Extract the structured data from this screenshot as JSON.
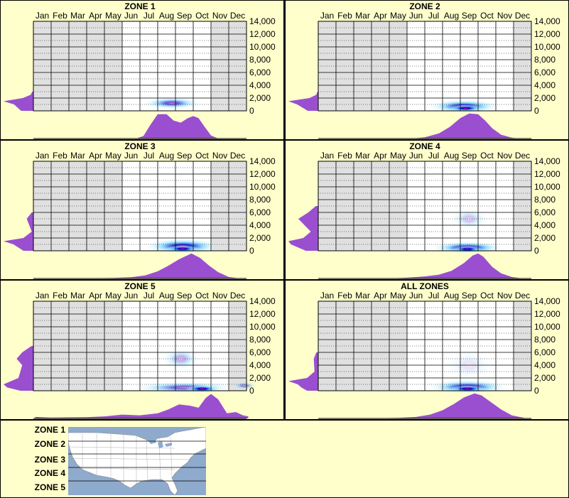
{
  "figure_title": "",
  "colors": {
    "background": "#ffffcc",
    "plot_background": "#ffffff",
    "shaded_month": "#e0e0e0",
    "grid": "#000000",
    "density_curve": "#9a4fd0",
    "heat_low": "#bfefff",
    "heat_mid": "#0000cc",
    "heat_high": "#ff1493",
    "map_water": "#8eaacc",
    "map_land": "#ffffff"
  },
  "months": [
    "Jan",
    "Feb",
    "Mar",
    "Apr",
    "May",
    "Jun",
    "Jul",
    "Aug",
    "Sep",
    "Oct",
    "Nov",
    "Dec"
  ],
  "yticks": [
    "14,000",
    "12,000",
    "10,000",
    "8,000",
    "6,000",
    "4,000",
    "2,000",
    "0"
  ],
  "chart_data": [
    {
      "type": "heatmap",
      "title": "ZONE 1",
      "x_axis": "month",
      "y_axis_ticks": [
        0,
        2000,
        4000,
        6000,
        8000,
        10000,
        12000,
        14000
      ],
      "ylim": [
        0,
        14000
      ],
      "shaded_months": [
        "Jan",
        "Feb",
        "Mar",
        "Apr",
        "May",
        "Nov",
        "Dec"
      ],
      "hotspots": [
        {
          "month_center": 8.3,
          "month_spread": 1.3,
          "elev_center": 1200,
          "elev_spread": 700,
          "intensity": 0.65
        }
      ],
      "elevation_profile": [
        {
          "elev": 0,
          "d": 0.35
        },
        {
          "elev": 500,
          "d": 0.45
        },
        {
          "elev": 1000,
          "d": 0.55
        },
        {
          "elev": 1500,
          "d": 0.85
        },
        {
          "elev": 2000,
          "d": 0.3
        },
        {
          "elev": 2500,
          "d": 0.08
        },
        {
          "elev": 3000,
          "d": 0.03
        }
      ],
      "month_profile": {
        "x": [
          5.8,
          6.2,
          6.6,
          7.0,
          7.5,
          7.9,
          8.3,
          8.7,
          9.0,
          9.3,
          9.6,
          10.0,
          10.4
        ],
        "density": [
          0,
          0.1,
          0.55,
          0.95,
          0.95,
          0.7,
          0.62,
          0.8,
          0.88,
          0.8,
          0.5,
          0.12,
          0
        ]
      }
    },
    {
      "type": "heatmap",
      "title": "ZONE 2",
      "x_axis": "month",
      "y_axis_ticks": [
        0,
        2000,
        4000,
        6000,
        8000,
        10000,
        12000,
        14000
      ],
      "ylim": [
        0,
        14000
      ],
      "shaded_months": [
        "Jan",
        "Feb",
        "Mar",
        "Apr",
        "May",
        "Dec"
      ],
      "hotspots": [
        {
          "month_center": 8.7,
          "month_spread": 1.6,
          "elev_center": 700,
          "elev_spread": 800,
          "intensity": 0.85
        },
        {
          "month_center": 8.8,
          "month_spread": 0.8,
          "elev_center": 400,
          "elev_spread": 400,
          "intensity": 1.0
        }
      ],
      "elevation_profile": [
        {
          "elev": 0,
          "d": 0.3
        },
        {
          "elev": 500,
          "d": 0.45
        },
        {
          "elev": 1000,
          "d": 0.6
        },
        {
          "elev": 1500,
          "d": 0.85
        },
        {
          "elev": 2000,
          "d": 0.25
        },
        {
          "elev": 2500,
          "d": 0.06
        },
        {
          "elev": 3000,
          "d": 0.02
        }
      ],
      "month_profile": {
        "x": [
          5.3,
          6.0,
          6.8,
          7.4,
          8.0,
          8.5,
          9.0,
          9.4,
          9.8,
          10.3,
          10.9,
          11.3
        ],
        "density": [
          0,
          0.05,
          0.2,
          0.45,
          0.8,
          0.98,
          0.95,
          0.7,
          0.4,
          0.15,
          0.03,
          0
        ]
      }
    },
    {
      "type": "heatmap",
      "title": "ZONE 3",
      "x_axis": "month",
      "y_axis_ticks": [
        0,
        2000,
        4000,
        6000,
        8000,
        10000,
        12000,
        14000
      ],
      "ylim": [
        0,
        14000
      ],
      "shaded_months": [
        "Jan",
        "Feb",
        "Mar",
        "Apr",
        "May",
        "Nov",
        "Dec"
      ],
      "hotspots": [
        {
          "month_center": 8.9,
          "month_spread": 1.7,
          "elev_center": 700,
          "elev_spread": 900,
          "intensity": 0.9
        },
        {
          "month_center": 8.9,
          "month_spread": 0.8,
          "elev_center": 300,
          "elev_spread": 350,
          "intensity": 1.0
        }
      ],
      "elevation_profile": [
        {
          "elev": 0,
          "d": 0.3
        },
        {
          "elev": 500,
          "d": 0.45
        },
        {
          "elev": 1000,
          "d": 0.6
        },
        {
          "elev": 1500,
          "d": 0.9
        },
        {
          "elev": 2000,
          "d": 0.3
        },
        {
          "elev": 3000,
          "d": 0.05
        },
        {
          "elev": 5000,
          "d": 0.2
        },
        {
          "elev": 6000,
          "d": 0.05
        }
      ],
      "month_profile": {
        "x": [
          2.0,
          3.5,
          4.5,
          5.5,
          6.3,
          7.0,
          7.6,
          8.2,
          8.9,
          9.4,
          9.9,
          10.4,
          11.0,
          11.6
        ],
        "density": [
          0,
          0.01,
          0.02,
          0.05,
          0.12,
          0.28,
          0.5,
          0.75,
          0.98,
          0.8,
          0.5,
          0.25,
          0.06,
          0
        ]
      }
    },
    {
      "type": "heatmap",
      "title": "ZONE 4",
      "x_axis": "month",
      "y_axis_ticks": [
        0,
        2000,
        4000,
        6000,
        8000,
        10000,
        12000,
        14000
      ],
      "ylim": [
        0,
        14000
      ],
      "shaded_months": [
        "Jan",
        "Feb",
        "Mar",
        "Apr",
        "May",
        "Dec"
      ],
      "hotspots": [
        {
          "month_center": 8.9,
          "month_spread": 1.6,
          "elev_center": 500,
          "elev_spread": 700,
          "intensity": 0.9
        },
        {
          "month_center": 8.9,
          "month_spread": 0.7,
          "elev_center": 250,
          "elev_spread": 300,
          "intensity": 1.0
        },
        {
          "month_center": 9.0,
          "month_spread": 0.9,
          "elev_center": 5000,
          "elev_spread": 1300,
          "intensity": 0.22
        }
      ],
      "elevation_profile": [
        {
          "elev": 0,
          "d": 0.25
        },
        {
          "elev": 500,
          "d": 0.4
        },
        {
          "elev": 1000,
          "d": 0.55
        },
        {
          "elev": 1500,
          "d": 0.6
        },
        {
          "elev": 2000,
          "d": 0.3
        },
        {
          "elev": 3000,
          "d": 0.15
        },
        {
          "elev": 5000,
          "d": 0.4
        },
        {
          "elev": 6000,
          "d": 0.2
        },
        {
          "elev": 7000,
          "d": 0.05
        }
      ],
      "month_profile": {
        "x": [
          4.0,
          5.0,
          6.0,
          6.8,
          7.5,
          8.2,
          8.7,
          9.0,
          9.3,
          9.8,
          10.3,
          10.9,
          11.5
        ],
        "density": [
          0,
          0.03,
          0.08,
          0.15,
          0.3,
          0.6,
          0.9,
          0.98,
          0.85,
          0.45,
          0.2,
          0.06,
          0
        ]
      }
    },
    {
      "type": "heatmap",
      "title": "ZONE 5",
      "x_axis": "month",
      "y_axis_ticks": [
        0,
        2000,
        4000,
        6000,
        8000,
        10000,
        12000,
        14000
      ],
      "ylim": [
        0,
        14000
      ],
      "shaded_months": [
        "Jan",
        "Feb",
        "Mar",
        "Apr",
        "May",
        "Dec"
      ],
      "hotspots": [
        {
          "month_center": 9.0,
          "month_spread": 2.3,
          "elev_center": 500,
          "elev_spread": 700,
          "intensity": 0.6
        },
        {
          "month_center": 10.0,
          "month_spread": 0.8,
          "elev_center": 300,
          "elev_spread": 350,
          "intensity": 1.0
        },
        {
          "month_center": 8.8,
          "month_spread": 0.9,
          "elev_center": 5000,
          "elev_spread": 1300,
          "intensity": 0.3
        },
        {
          "month_center": 12.4,
          "month_spread": 0.6,
          "elev_center": 800,
          "elev_spread": 500,
          "intensity": 0.4
        }
      ],
      "elevation_profile": [
        {
          "elev": 0,
          "d": 0.35
        },
        {
          "elev": 500,
          "d": 0.7
        },
        {
          "elev": 1000,
          "d": 0.8
        },
        {
          "elev": 1500,
          "d": 0.6
        },
        {
          "elev": 2000,
          "d": 0.4
        },
        {
          "elev": 3000,
          "d": 0.35
        },
        {
          "elev": 4000,
          "d": 0.3
        },
        {
          "elev": 5000,
          "d": 0.45
        },
        {
          "elev": 6000,
          "d": 0.3
        },
        {
          "elev": 7000,
          "d": 0.05
        }
      ],
      "month_profile": {
        "x": [
          0.1,
          1.0,
          2.0,
          3.0,
          4.0,
          5.0,
          6.0,
          7.0,
          7.6,
          8.2,
          8.8,
          9.3,
          9.7,
          10.0,
          10.4,
          10.9,
          11.4,
          11.8,
          12.1
        ],
        "density": [
          0.06,
          0.03,
          0.04,
          0.05,
          0.08,
          0.15,
          0.12,
          0.2,
          0.35,
          0.55,
          0.5,
          0.42,
          0.8,
          0.96,
          0.75,
          0.2,
          0.25,
          0.12,
          0.08
        ]
      }
    },
    {
      "type": "heatmap",
      "title": "ALL ZONES",
      "x_axis": "month",
      "y_axis_ticks": [
        0,
        2000,
        4000,
        6000,
        8000,
        10000,
        12000,
        14000
      ],
      "ylim": [
        0,
        14000
      ],
      "shaded_months": [
        "Jan",
        "Feb",
        "Mar",
        "Apr",
        "May",
        "Dec"
      ],
      "hotspots": [
        {
          "month_center": 8.9,
          "month_spread": 1.8,
          "elev_center": 600,
          "elev_spread": 800,
          "intensity": 0.85
        },
        {
          "month_center": 8.9,
          "month_spread": 0.85,
          "elev_center": 300,
          "elev_spread": 350,
          "intensity": 1.0
        },
        {
          "month_center": 9.0,
          "month_spread": 1.2,
          "elev_center": 4000,
          "elev_spread": 2000,
          "intensity": 0.1
        }
      ],
      "elevation_profile": [
        {
          "elev": 0,
          "d": 0.3
        },
        {
          "elev": 500,
          "d": 0.45
        },
        {
          "elev": 1000,
          "d": 0.55
        },
        {
          "elev": 1500,
          "d": 0.8
        },
        {
          "elev": 2000,
          "d": 0.3
        },
        {
          "elev": 3000,
          "d": 0.1
        },
        {
          "elev": 5000,
          "d": 0.12
        },
        {
          "elev": 6000,
          "d": 0.05
        }
      ],
      "month_profile": {
        "x": [
          2.0,
          3.5,
          4.5,
          5.5,
          6.3,
          7.0,
          7.6,
          8.2,
          8.8,
          9.2,
          9.7,
          10.3,
          10.9,
          11.6
        ],
        "density": [
          0,
          0.01,
          0.02,
          0.06,
          0.15,
          0.32,
          0.55,
          0.82,
          0.98,
          0.9,
          0.65,
          0.35,
          0.12,
          0.02
        ]
      }
    }
  ],
  "zone_legend": {
    "labels": [
      "ZONE 1",
      "ZONE 2",
      "ZONE 3",
      "ZONE 4",
      "ZONE 5"
    ]
  }
}
